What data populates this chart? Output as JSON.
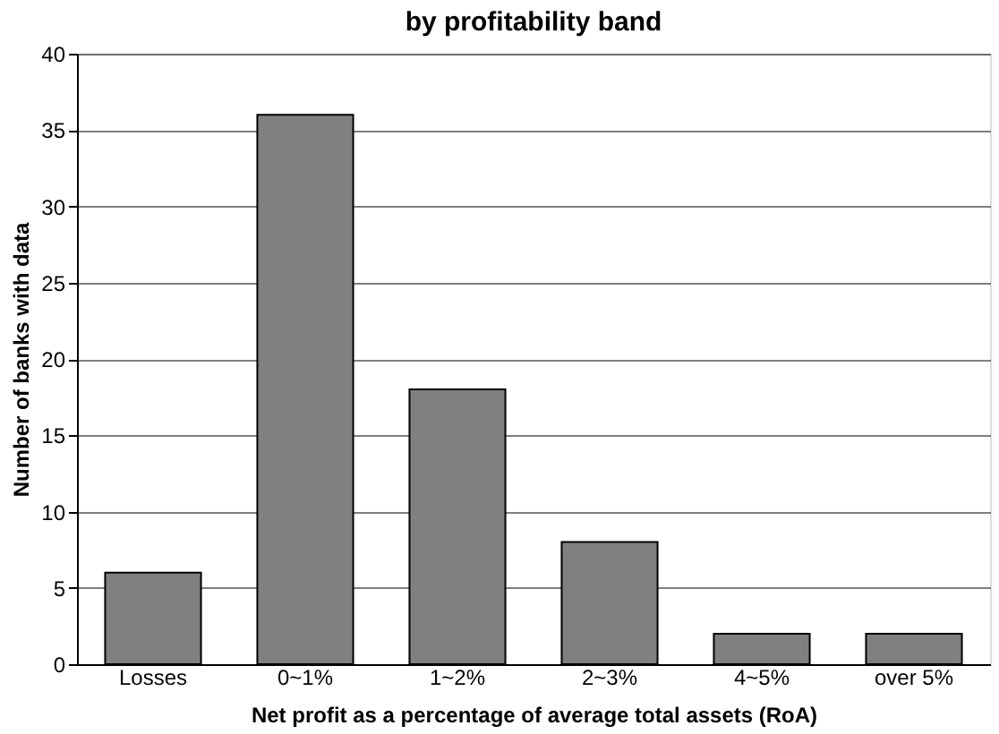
{
  "chart_data": {
    "type": "bar",
    "title": "by profitability band",
    "xlabel": "Net profit as a percentage of average total assets (RoA)",
    "ylabel": "Number of banks with data",
    "categories": [
      "Losses",
      "0~1%",
      "1~2%",
      "2~3%",
      "4~5%",
      "over 5%"
    ],
    "values": [
      6,
      36,
      18,
      8,
      2,
      2
    ],
    "color": "#808080",
    "ylim": [
      0,
      40
    ],
    "yticks": [
      0,
      5,
      10,
      15,
      20,
      25,
      30,
      35,
      40
    ],
    "grid": "y"
  }
}
